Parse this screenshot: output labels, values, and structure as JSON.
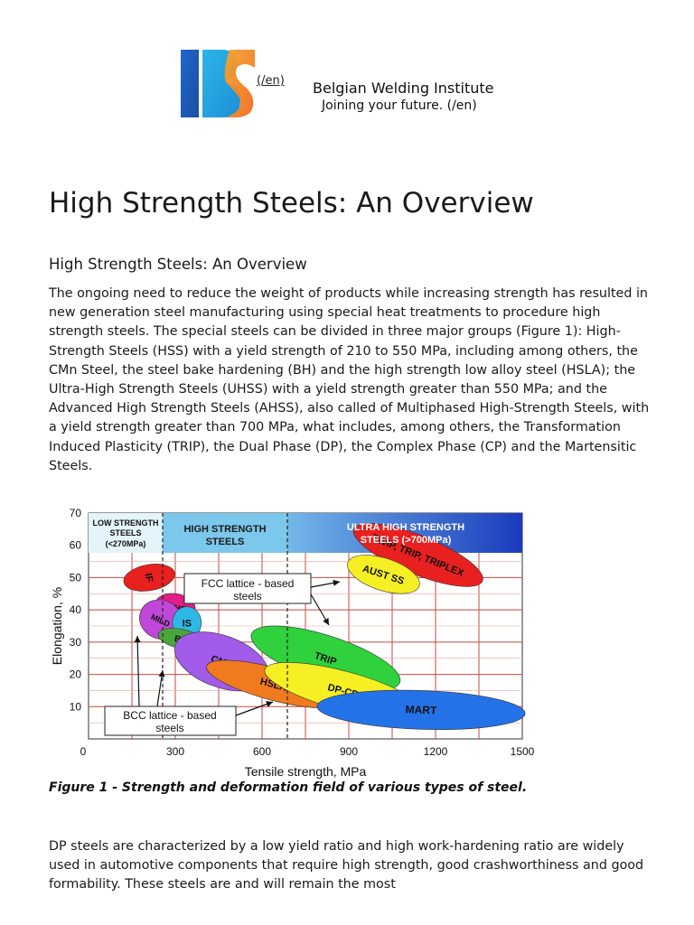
{
  "header": {
    "logo_link_text": "(/en)",
    "institute_name": "Belgian Welding Institute",
    "tagline": "Joining your future. (/en)"
  },
  "page_title": "High Strength Steels: An Overview",
  "section_heading": "High Strength Steels: An Overview",
  "paragraph1": "The ongoing need to reduce the weight of products while increasing strength has resulted in new generation steel manufacturing using special heat treatments to procedure high strength steels. The special steels can be divided in three major groups (Figure 1): High-Strength Steels (HSS) with a yield strength of 210 to 550 MPa, including among others, the CMn Steel, the steel bake hardening (BH) and the high strength low alloy steel (HSLA); the Ultra-High Strength Steels (UHSS) with a yield strength greater than 550 MPa; and the Advanced High Strength Steels (AHSS), also called of Multiphased High-Strength Steels, with a yield strength greater than 700 MPa, what includes, among others, the Transformation Induced Plasticity (TRIP), the Dual Phase (DP), the Complex Phase (CP) and the Martensitic Steels.",
  "figure": {
    "band_low": [
      "LOW STRENGTH",
      "STEELS",
      "(<270MPa)"
    ],
    "band_high": [
      "HIGH STRENGTH",
      "STEELS"
    ],
    "band_ultra": [
      "ULTRA HIGH STRENGTH",
      "STEELS (>700MPa)"
    ],
    "fcc_label": [
      "FCC lattice - based",
      "steels"
    ],
    "bcc_label": [
      "BCC lattice - based",
      "steels"
    ],
    "caption": "Figure 1 - Strength and deformation field of various types of steel."
  },
  "chart_data": {
    "type": "scatter",
    "xlabel": "Tensile strength, MPa",
    "ylabel": "Elongation, %",
    "xlim": [
      0,
      1500
    ],
    "ylim": [
      0,
      70
    ],
    "x_ticks": [
      "0",
      "300",
      "600",
      "900",
      "1200",
      "1500"
    ],
    "y_ticks": [
      "10",
      "20",
      "30",
      "40",
      "50",
      "60",
      "70"
    ],
    "grid": true,
    "regions": [
      {
        "name": "IF",
        "x": 210,
        "y": 50,
        "rx": 45,
        "ry": 8,
        "color": "#e8201f"
      },
      {
        "name": "IF-HS",
        "x": 300,
        "y": 41,
        "rx": 70,
        "ry": 4,
        "color": "#e11d8a"
      },
      {
        "name": "MILD",
        "x": 250,
        "y": 37,
        "rx": 75,
        "ry": 6,
        "color": "#c047d8"
      },
      {
        "name": "IS",
        "x": 340,
        "y": 36,
        "rx": 50,
        "ry": 5,
        "color": "#2fb8e6"
      },
      {
        "name": "BH",
        "x": 320,
        "y": 31,
        "rx": 80,
        "ry": 3,
        "color": "#4aa63b"
      },
      {
        "name": "CMn",
        "x": 460,
        "y": 24,
        "rx": 170,
        "ry": 8,
        "color": "#a25ae8"
      },
      {
        "name": "HSLA",
        "x": 640,
        "y": 17,
        "rx": 240,
        "ry": 5,
        "color": "#f07a1e"
      },
      {
        "name": "TRIP",
        "x": 820,
        "y": 25,
        "rx": 270,
        "ry": 7,
        "color": "#2fd13d"
      },
      {
        "name": "DP-CP",
        "x": 880,
        "y": 15,
        "rx": 280,
        "ry": 6,
        "color": "#f5ef23"
      },
      {
        "name": "MART",
        "x": 1150,
        "y": 9,
        "rx": 360,
        "ry": 6,
        "color": "#2472e8"
      },
      {
        "name": "TWIP, TRIP, TRIPLEX",
        "x": 1140,
        "y": 57,
        "rx": 240,
        "ry": 6,
        "color": "#e8201f"
      },
      {
        "name": "AUST SS",
        "x": 1020,
        "y": 51,
        "rx": 130,
        "ry": 5,
        "color": "#f5ef23"
      }
    ]
  },
  "paragraph2": "DP steels are characterized by a low yield ratio and high work-hardening ratio are widely used in automotive components that require high strength, good crashworthiness and good formability. These steels are and will remain the most"
}
